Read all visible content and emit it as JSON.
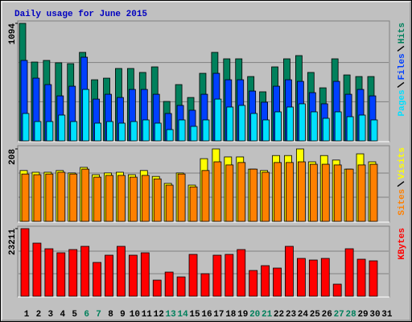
{
  "chart_data": {
    "type": "bar",
    "title": "Daily usage for June 2015",
    "categories": [
      "1",
      "2",
      "3",
      "4",
      "5",
      "6",
      "7",
      "8",
      "9",
      "10",
      "11",
      "12",
      "13",
      "14",
      "15",
      "16",
      "17",
      "18",
      "19",
      "20",
      "21",
      "22",
      "23",
      "24",
      "25",
      "26",
      "27",
      "28",
      "29",
      "30",
      "31"
    ],
    "category_colors": [
      "#000000",
      "#000000",
      "#000000",
      "#000000",
      "#000000",
      "#00805c",
      "#00805c",
      "#000000",
      "#000000",
      "#000000",
      "#000000",
      "#000000",
      "#00805c",
      "#00805c",
      "#000000",
      "#000000",
      "#000000",
      "#000000",
      "#000000",
      "#00805c",
      "#00805c",
      "#000000",
      "#000000",
      "#000000",
      "#000000",
      "#000000",
      "#00805c",
      "#00805c",
      "#000000",
      "#000000",
      "#000000"
    ],
    "panels": [
      {
        "ylim": [
          0,
          1094
        ],
        "yticks": [
          1094
        ],
        "series": [
          {
            "name": "Hits",
            "color": "#00805c",
            "values": [
              1094,
              734,
              749,
              727,
              719,
              824,
              569,
              584,
              674,
              674,
              637,
              689,
              367,
              524,
              404,
              629,
              824,
              764,
              764,
              599,
              457,
              689,
              764,
              794,
              637,
              494,
              764,
              614,
              599,
              599,
              null
            ]
          },
          {
            "name": "Files",
            "color": "#0040ff",
            "values": [
              749,
              584,
              524,
              419,
              509,
              779,
              389,
              434,
              404,
              479,
              479,
              434,
              255,
              330,
              285,
              434,
              629,
              569,
              569,
              464,
              360,
              509,
              569,
              554,
              449,
              345,
              554,
              434,
              479,
              419,
              null
            ]
          },
          {
            "name": "Pages",
            "color": "#00e0ff",
            "values": [
              255,
              180,
              180,
              240,
              180,
              479,
              165,
              180,
              165,
              180,
              195,
              165,
              105,
              195,
              135,
              195,
              389,
              315,
              330,
              255,
              195,
              270,
              315,
              345,
              270,
              210,
              270,
              225,
              240,
              195,
              null
            ]
          }
        ]
      },
      {
        "ylim": [
          0,
          208
        ],
        "yticks": [
          208
        ],
        "series": [
          {
            "name": "Visits",
            "color": "#ffff00",
            "values": [
              146,
              141,
              141,
              146,
              139,
              155,
              134,
              139,
              141,
              134,
              146,
              129,
              109,
              139,
              104,
              180,
              208,
              185,
              185,
              150,
              146,
              189,
              189,
              208,
              171,
              189,
              176,
              150,
              194,
              171,
              null
            ]
          },
          {
            "name": "Sites",
            "color": "#ff8000",
            "values": [
              136,
              134,
              136,
              141,
              136,
              150,
              127,
              132,
              132,
              127,
              132,
              122,
              104,
              136,
              99,
              146,
              171,
              162,
              169,
              150,
              141,
              169,
              169,
              171,
              164,
              164,
              162,
              150,
              162,
              164,
              null
            ]
          }
        ]
      },
      {
        "ylim": [
          0,
          23211
        ],
        "yticks": [
          23211
        ],
        "series": [
          {
            "name": "KBytes",
            "color": "#ff0000",
            "values": [
              23211,
              18236,
              16302,
              14920,
              16025,
              17131,
              11605,
              14091,
              17131,
              14091,
              14920,
              5526,
              8289,
              6631,
              14368,
              7737,
              14091,
              14368,
              16025,
              8842,
              10500,
              9671,
              17131,
              12986,
              12434,
              12986,
              4145,
              16302,
              12710,
              12158,
              null
            ]
          }
        ]
      }
    ]
  }
}
